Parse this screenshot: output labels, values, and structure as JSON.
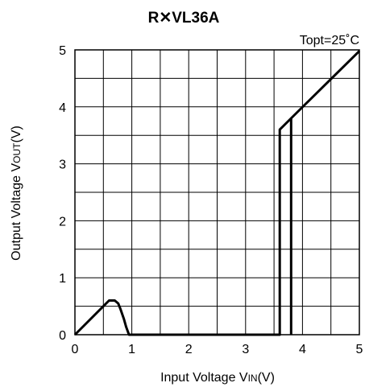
{
  "chart_data": {
    "type": "line",
    "title": "R✕VL36A",
    "annotation": "Topt=25˚C",
    "xlabel": "Input Voltage V",
    "xlabel_sub": "IN",
    "xlabel_unit": "(V)",
    "ylabel": "Output Voltage V",
    "ylabel_sub": "OUT",
    "ylabel_unit": "(V)",
    "xlim": [
      0,
      5
    ],
    "ylim": [
      0,
      5
    ],
    "x_ticks": [
      "0",
      "1",
      "2",
      "3",
      "4",
      "5"
    ],
    "y_ticks": [
      "0",
      "1",
      "2",
      "3",
      "4",
      "5"
    ],
    "grid": true,
    "x_minor_step": 0.5,
    "y_minor_step": 0.5,
    "line_color": "#000000",
    "series": [
      {
        "values": [
          [
            0,
            0
          ],
          [
            0.6,
            0.6
          ],
          [
            0.7,
            0.6
          ],
          [
            0.76,
            0.55
          ],
          [
            0.8,
            0.45
          ],
          [
            0.86,
            0.28
          ],
          [
            0.9,
            0.14
          ],
          [
            0.95,
            0
          ],
          [
            3.6,
            0
          ],
          [
            3.6,
            3.6
          ],
          [
            3.8,
            3.8
          ],
          [
            5.0,
            4.98
          ]
        ]
      },
      {
        "values": [
          [
            3.8,
            0
          ],
          [
            3.8,
            3.8
          ]
        ]
      }
    ]
  }
}
